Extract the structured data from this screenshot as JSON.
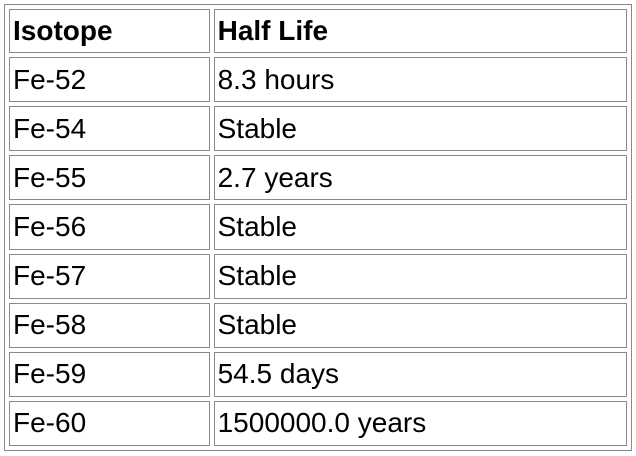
{
  "table": {
    "headers": {
      "isotope": "Isotope",
      "half_life": "Half Life"
    },
    "rows": [
      {
        "isotope": "Fe-52",
        "half_life": "8.3 hours"
      },
      {
        "isotope": "Fe-54",
        "half_life": "Stable"
      },
      {
        "isotope": "Fe-55",
        "half_life": "2.7 years"
      },
      {
        "isotope": "Fe-56",
        "half_life": "Stable"
      },
      {
        "isotope": "Fe-57",
        "half_life": "Stable"
      },
      {
        "isotope": "Fe-58",
        "half_life": "Stable"
      },
      {
        "isotope": "Fe-59",
        "half_life": "54.5 days"
      },
      {
        "isotope": "Fe-60",
        "half_life": "1500000.0 years"
      }
    ]
  }
}
